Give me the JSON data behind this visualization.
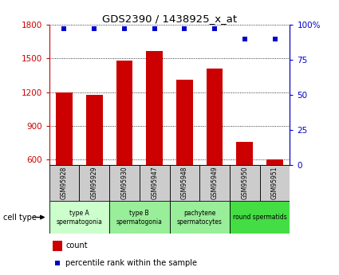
{
  "title": "GDS2390 / 1438925_x_at",
  "samples": [
    "GSM95928",
    "GSM95929",
    "GSM95930",
    "GSM95947",
    "GSM95948",
    "GSM95949",
    "GSM95950",
    "GSM95951"
  ],
  "counts": [
    1195,
    1175,
    1480,
    1565,
    1310,
    1410,
    755,
    600
  ],
  "percentiles": [
    97,
    97,
    97,
    97,
    97,
    97,
    90,
    90
  ],
  "cell_types": [
    {
      "label": "type A\nspermatogonia",
      "span": [
        0,
        2
      ],
      "color": "#ccffcc"
    },
    {
      "label": "type B\nspermatogonia",
      "span": [
        2,
        4
      ],
      "color": "#99ee99"
    },
    {
      "label": "pachytene\nspermatocytes",
      "span": [
        4,
        6
      ],
      "color": "#99ee99"
    },
    {
      "label": "round spermatids",
      "span": [
        6,
        8
      ],
      "color": "#44dd44"
    }
  ],
  "ylim_left": [
    550,
    1800
  ],
  "ylim_right": [
    0,
    100
  ],
  "yticks_left": [
    600,
    900,
    1200,
    1500,
    1800
  ],
  "yticks_right": [
    0,
    25,
    50,
    75,
    100
  ],
  "pct_tick_labels": [
    "0",
    "25",
    "50",
    "75",
    "100%"
  ],
  "bar_color": "#cc0000",
  "dot_color": "#0000cc",
  "sample_box_color": "#cccccc",
  "left_axis_color": "#cc0000",
  "right_axis_color": "#0000cc",
  "legend_red_label": "count",
  "legend_blue_label": "percentile rank within the sample",
  "cell_type_label": "cell type"
}
